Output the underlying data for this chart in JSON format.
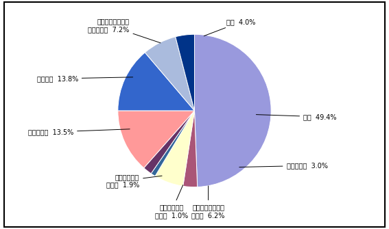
{
  "labels_line1": [
    "市税",
    "地方交付税",
    "地方譲与税などの\n交付金",
    "保育料などの\n負担金",
    "使用料および\n手数料",
    "国庫支出金",
    "都支出金",
    "繰越金・繰入金・\n諸収入など",
    "市債"
  ],
  "label_pcts": [
    "49.4%",
    "3.0%",
    "6.2%",
    "1.0%",
    "1.9%",
    "13.5%",
    "13.8%",
    "7.2%",
    "4.0%"
  ],
  "values": [
    49.4,
    3.0,
    6.2,
    1.0,
    1.9,
    13.5,
    13.8,
    7.2,
    4.0
  ],
  "colors": [
    "#9999dd",
    "#aa5577",
    "#ffffcc",
    "#336699",
    "#663366",
    "#ff9999",
    "#3366cc",
    "#aabbdd",
    "#003388"
  ],
  "startangle": 90,
  "background_color": "#ffffff",
  "figsize": [
    5.67,
    3.35
  ],
  "dpi": 100
}
